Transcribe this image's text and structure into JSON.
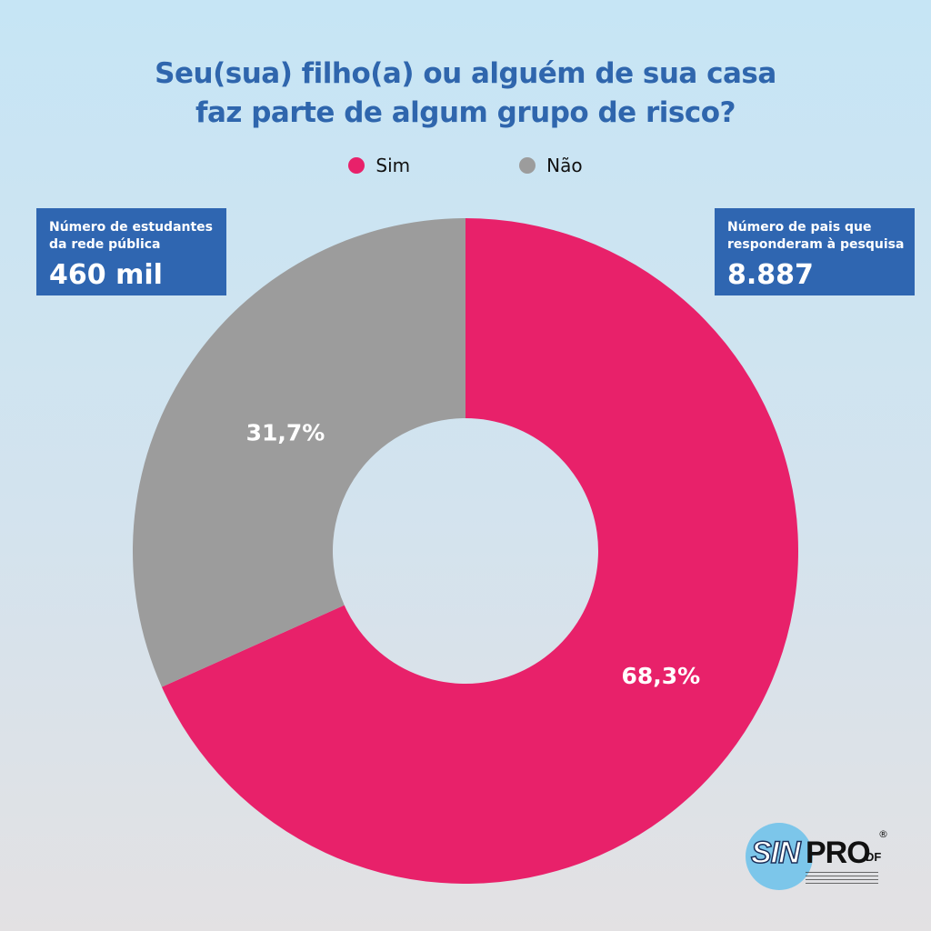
{
  "title": {
    "line1": "Seu(sua) filho(a) ou alguém de sua casa",
    "line2": "faz parte de algum grupo de risco?"
  },
  "legend": [
    {
      "label": "Sim",
      "color": "#e8216a"
    },
    {
      "label": "Não",
      "color": "#9c9c9c"
    }
  ],
  "info_left": {
    "label_line1": "Número de estudantes",
    "label_line2": "da rede pública",
    "value": "460 mil"
  },
  "info_right": {
    "label_line1": "Número de pais que",
    "label_line2": "responderam à pesquisa",
    "value": "8.887"
  },
  "chart_data": {
    "type": "pie",
    "donut": true,
    "title": "Seu(sua) filho(a) ou alguém de sua casa faz parte de algum grupo de risco?",
    "categories": [
      "Sim",
      "Não"
    ],
    "values": [
      68.3,
      31.7
    ],
    "labels": [
      "68,3%",
      "31,7%"
    ],
    "colors": [
      "#e8216a",
      "#9c9c9c"
    ],
    "legend_position": "top-center"
  },
  "logo": {
    "name": "SINPRO",
    "region": "DF"
  }
}
